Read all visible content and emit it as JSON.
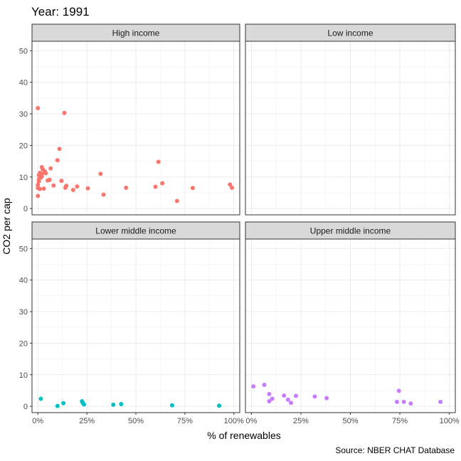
{
  "chart_data": {
    "type": "scatter",
    "title": "Year: 1991",
    "caption": "Source: NBER CHAT Database",
    "xlabel": "% of renewables",
    "ylabel": "CO2 per cap",
    "xlim": [
      -0.03,
      1.03
    ],
    "ylim": [
      -2,
      53
    ],
    "x_ticks": [
      {
        "value": 0,
        "label": "0%"
      },
      {
        "value": 0.25,
        "label": "25%"
      },
      {
        "value": 0.5,
        "label": "50%"
      },
      {
        "value": 0.75,
        "label": "75%"
      },
      {
        "value": 1.0,
        "label": "100%"
      }
    ],
    "y_ticks": [
      {
        "value": 0,
        "label": "0"
      },
      {
        "value": 10,
        "label": "10"
      },
      {
        "value": 20,
        "label": "20"
      },
      {
        "value": 30,
        "label": "30"
      },
      {
        "value": 40,
        "label": "40"
      },
      {
        "value": 50,
        "label": "50"
      }
    ],
    "grid": true,
    "legend": "none",
    "panels": [
      {
        "name": "High income",
        "color": "#F8766D",
        "points": [
          {
            "x": 0.0,
            "y": 31.8
          },
          {
            "x": 0.0,
            "y": 4.0
          },
          {
            "x": 0.0,
            "y": 6.5
          },
          {
            "x": 0.0,
            "y": 7.5
          },
          {
            "x": 0.005,
            "y": 8.6
          },
          {
            "x": 0.005,
            "y": 9.3
          },
          {
            "x": 0.005,
            "y": 10.6
          },
          {
            "x": 0.01,
            "y": 11.3
          },
          {
            "x": 0.01,
            "y": 6.2
          },
          {
            "x": 0.015,
            "y": 9.8
          },
          {
            "x": 0.02,
            "y": 11.0
          },
          {
            "x": 0.02,
            "y": 10.2
          },
          {
            "x": 0.02,
            "y": 13.1
          },
          {
            "x": 0.025,
            "y": 12.4
          },
          {
            "x": 0.03,
            "y": 6.3
          },
          {
            "x": 0.035,
            "y": 11.8
          },
          {
            "x": 0.04,
            "y": 11.2
          },
          {
            "x": 0.05,
            "y": 8.9
          },
          {
            "x": 0.06,
            "y": 9.1
          },
          {
            "x": 0.065,
            "y": 12.7
          },
          {
            "x": 0.08,
            "y": 7.3
          },
          {
            "x": 0.1,
            "y": 15.3
          },
          {
            "x": 0.11,
            "y": 18.9
          },
          {
            "x": 0.12,
            "y": 8.8
          },
          {
            "x": 0.135,
            "y": 30.3
          },
          {
            "x": 0.14,
            "y": 6.6
          },
          {
            "x": 0.145,
            "y": 7.2
          },
          {
            "x": 0.18,
            "y": 5.9
          },
          {
            "x": 0.2,
            "y": 7.0
          },
          {
            "x": 0.255,
            "y": 6.4
          },
          {
            "x": 0.32,
            "y": 11.0
          },
          {
            "x": 0.335,
            "y": 4.4
          },
          {
            "x": 0.45,
            "y": 6.6
          },
          {
            "x": 0.6,
            "y": 6.9
          },
          {
            "x": 0.615,
            "y": 14.8
          },
          {
            "x": 0.635,
            "y": 8.0
          },
          {
            "x": 0.71,
            "y": 2.4
          },
          {
            "x": 0.79,
            "y": 6.5
          },
          {
            "x": 0.98,
            "y": 7.6
          },
          {
            "x": 0.99,
            "y": 6.6
          }
        ]
      },
      {
        "name": "Low income",
        "color": "#7CAE00",
        "points": []
      },
      {
        "name": "Lower middle income",
        "color": "#00BFC4",
        "points": [
          {
            "x": 0.015,
            "y": 2.4
          },
          {
            "x": 0.1,
            "y": 0.1
          },
          {
            "x": 0.13,
            "y": 1.0
          },
          {
            "x": 0.225,
            "y": 1.6
          },
          {
            "x": 0.23,
            "y": 1.0
          },
          {
            "x": 0.235,
            "y": 0.6
          },
          {
            "x": 0.385,
            "y": 0.5
          },
          {
            "x": 0.425,
            "y": 0.7
          },
          {
            "x": 0.685,
            "y": 0.3
          },
          {
            "x": 0.925,
            "y": 0.2
          }
        ]
      },
      {
        "name": "Upper middle income",
        "color": "#C77CFF",
        "points": [
          {
            "x": 0.01,
            "y": 6.3
          },
          {
            "x": 0.065,
            "y": 6.8
          },
          {
            "x": 0.09,
            "y": 3.9
          },
          {
            "x": 0.09,
            "y": 1.6
          },
          {
            "x": 0.105,
            "y": 2.4
          },
          {
            "x": 0.165,
            "y": 3.4
          },
          {
            "x": 0.185,
            "y": 2.1
          },
          {
            "x": 0.2,
            "y": 1.1
          },
          {
            "x": 0.225,
            "y": 3.3
          },
          {
            "x": 0.32,
            "y": 3.1
          },
          {
            "x": 0.38,
            "y": 2.6
          },
          {
            "x": 0.735,
            "y": 1.4
          },
          {
            "x": 0.745,
            "y": 4.9
          },
          {
            "x": 0.77,
            "y": 1.4
          },
          {
            "x": 0.805,
            "y": 0.9
          },
          {
            "x": 0.955,
            "y": 1.4
          }
        ]
      }
    ]
  }
}
